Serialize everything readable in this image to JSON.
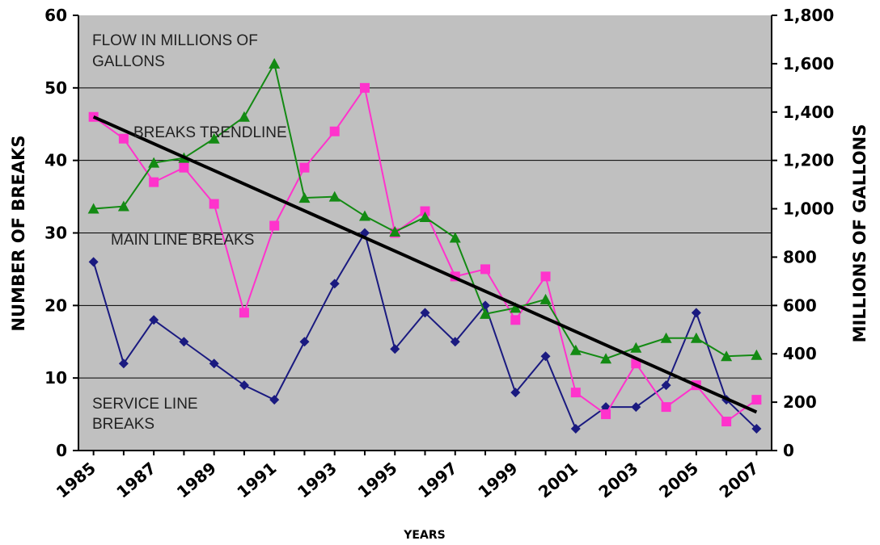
{
  "chart_data": {
    "type": "line",
    "xlabel": "YEARS",
    "ylabel": "NUMBER OF BREAKS",
    "ylabel_right": "MILLIONS OF GALLONS",
    "x": [
      1985,
      1986,
      1987,
      1988,
      1989,
      1990,
      1991,
      1992,
      1993,
      1994,
      1995,
      1996,
      1997,
      1998,
      1999,
      2000,
      2001,
      2002,
      2003,
      2004,
      2005,
      2006,
      2007
    ],
    "x_tick_labels": [
      "1985",
      "1987",
      "1989",
      "1991",
      "1993",
      "1995",
      "1997",
      "1999",
      "2001",
      "2003",
      "2005",
      "2007"
    ],
    "xlim": [
      1984.5,
      2007.5
    ],
    "ylim": [
      0,
      60
    ],
    "y_ticks": [
      "0",
      "10",
      "20",
      "30",
      "40",
      "50",
      "60"
    ],
    "y2lim": [
      0,
      1800
    ],
    "y2_ticks": [
      "0",
      "200",
      "400",
      "600",
      "800",
      "1,000",
      "1,200",
      "1,400",
      "1,600",
      "1,800"
    ],
    "grid": true,
    "colors": {
      "main_line": "#1a1a80",
      "service_line": "#ff33cc",
      "flow": "#138a13",
      "trend": "#000000",
      "plot_bg": "#c0c0c0"
    },
    "annotations": [
      {
        "text": "FLOW IN MILLIONS OF"
      },
      {
        "text": "GALLONS"
      },
      {
        "text": "BREAKS TRENDLINE"
      },
      {
        "text": "MAIN LINE BREAKS"
      },
      {
        "text": "SERVICE LINE"
      },
      {
        "text": "BREAKS"
      }
    ],
    "series": [
      {
        "key": "main",
        "axis": "left",
        "marker": "diamond",
        "values": [
          26,
          12,
          18,
          15,
          12,
          9,
          7,
          15,
          23,
          30,
          14,
          19,
          15,
          20,
          8,
          13,
          3,
          6,
          6,
          9,
          19,
          7,
          3
        ]
      },
      {
        "key": "service",
        "axis": "left",
        "marker": "square",
        "values": [
          46,
          43,
          37,
          39,
          34,
          19,
          31,
          39,
          44,
          50,
          30,
          33,
          24,
          25,
          18,
          24,
          8,
          5,
          12,
          6,
          9,
          4,
          7
        ]
      },
      {
        "key": "flow",
        "axis": "right",
        "marker": "triangle",
        "values": [
          1000,
          1010,
          1190,
          1210,
          1290,
          1380,
          1600,
          1045,
          1050,
          970,
          905,
          965,
          880,
          565,
          590,
          625,
          415,
          380,
          425,
          465,
          465,
          390,
          395
        ]
      },
      {
        "key": "trend",
        "axis": "left",
        "marker": "none",
        "values_at_ends": [
          46,
          5.3
        ]
      }
    ]
  }
}
